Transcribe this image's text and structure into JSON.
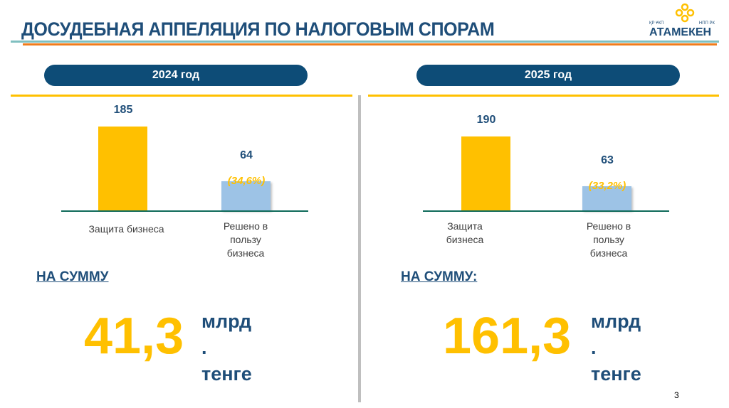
{
  "header": {
    "title": "ДОСУДЕБНАЯ АППЕЛЯЦИЯ ПО НАЛОГОВЫМ СПОРАМ",
    "logo": {
      "left": "ҚР ҰКП",
      "right": "НПП РК",
      "name": "АТАМЕКЕН"
    }
  },
  "colors": {
    "primary": "#1f4e79",
    "accent": "#ffc000",
    "light_bar": "#9dc3e6"
  },
  "chart_data": [
    {
      "type": "bar",
      "title": "2024 год",
      "categories": [
        "Защита бизнеса",
        "Решено в пользу бизнеса"
      ],
      "values": [
        185,
        64
      ],
      "labels": [
        "185",
        "64"
      ],
      "percent_label": "(34,6%)",
      "colors": [
        "#ffc000",
        "#9dc3e6"
      ]
    },
    {
      "type": "bar",
      "title": "2025 год",
      "categories": [
        "Защита бизнеса",
        "Решено в пользу бизнеса"
      ],
      "values": [
        190,
        63
      ],
      "labels": [
        "190",
        "63"
      ],
      "percent_label": "(33,2%)",
      "colors": [
        "#ffc000",
        "#9dc3e6"
      ]
    }
  ],
  "sums": [
    {
      "label": "НА СУММУ",
      "amount": "41,3",
      "unit1": "млрд",
      "dot": ".",
      "unit2": "тенге"
    },
    {
      "label": "НА СУММУ:",
      "amount": "161,3",
      "unit1": "млрд",
      "dot": ".",
      "unit2": "тенге"
    }
  ],
  "page_number": "3"
}
